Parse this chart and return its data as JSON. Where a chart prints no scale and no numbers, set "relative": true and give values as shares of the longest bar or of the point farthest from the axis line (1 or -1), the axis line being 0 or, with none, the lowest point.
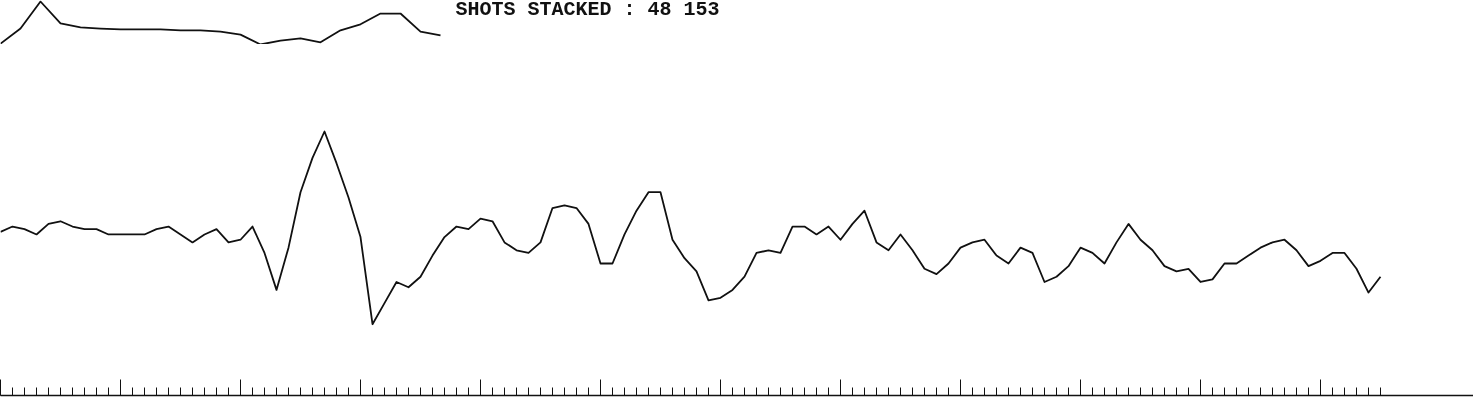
{
  "chart_data": [
    {
      "type": "line",
      "relative": true,
      "title": "SHOTS STACKED : 48 153",
      "grid": false,
      "categories": [
        null,
        null,
        null,
        null,
        null,
        null,
        null,
        null,
        null,
        null,
        null,
        null,
        null,
        null,
        null,
        null,
        null,
        null,
        null,
        null,
        null,
        null,
        null
      ],
      "series": [
        {
          "color": "#111111",
          "values": [
            0.02,
            0.37,
            1,
            0.49,
            0.4,
            0.37,
            0.35,
            0.35,
            0.35,
            0.33,
            0.33,
            0.3,
            0.23,
            0,
            0.09,
            0.14,
            0.05,
            0.33,
            0.47,
            0.72,
            0.72,
            0.3,
            0.21
          ]
        }
      ]
    },
    {
      "type": "line",
      "relative": true,
      "grid": false,
      "categories": [
        null,
        null,
        null,
        null,
        null,
        null,
        null,
        null,
        null,
        null,
        null,
        null,
        null,
        null,
        null,
        null,
        null,
        null,
        null,
        null,
        null,
        null,
        null,
        null,
        null,
        null,
        null,
        null,
        null,
        null,
        null,
        null,
        null,
        null,
        null,
        null,
        null,
        null,
        null,
        null,
        null,
        null,
        null,
        null,
        null,
        null,
        null,
        null,
        null,
        null,
        null,
        null,
        null,
        null,
        null,
        null,
        null,
        null,
        null,
        null,
        null,
        null,
        null,
        null,
        null,
        null,
        null,
        null,
        null,
        null,
        null,
        null,
        null,
        null,
        null,
        null,
        null,
        null,
        null,
        null,
        null,
        null,
        null,
        null,
        null,
        null,
        null,
        null,
        null,
        null,
        null,
        null,
        null,
        null,
        null,
        null,
        null,
        null,
        null,
        null,
        null,
        null,
        null,
        null,
        null,
        null,
        null,
        null,
        null,
        null,
        null,
        null,
        null,
        null,
        null,
        null
      ],
      "series": [
        {
          "color": "#111111",
          "values": [
            0.62,
            0.64,
            0.63,
            0.61,
            0.65,
            0.66,
            0.64,
            0.63,
            0.63,
            0.61,
            0.61,
            0.61,
            0.61,
            0.63,
            0.64,
            0.61,
            0.58,
            0.61,
            0.63,
            0.58,
            0.59,
            0.64,
            0.54,
            0.4,
            0.56,
            0.77,
            0.9,
            1,
            0.88,
            0.75,
            0.6,
            0.27,
            0.35,
            0.43,
            0.41,
            0.45,
            0.53,
            0.6,
            0.64,
            0.63,
            0.67,
            0.66,
            0.58,
            0.55,
            0.54,
            0.58,
            0.71,
            0.72,
            0.71,
            0.65,
            0.5,
            0.5,
            0.61,
            0.7,
            0.77,
            0.77,
            0.59,
            0.52,
            0.47,
            0.36,
            0.37,
            0.4,
            0.45,
            0.54,
            0.55,
            0.54,
            0.64,
            0.64,
            0.61,
            0.64,
            0.59,
            0.65,
            0.7,
            0.58,
            0.55,
            0.61,
            0.55,
            0.48,
            0.46,
            0.5,
            0.56,
            0.58,
            0.59,
            0.53,
            0.5,
            0.56,
            0.54,
            0.43,
            0.45,
            0.49,
            0.56,
            0.54,
            0.5,
            0.58,
            0.65,
            0.59,
            0.55,
            0.49,
            0.47,
            0.48,
            0.43,
            0.44,
            0.5,
            0.5,
            0.53,
            0.56,
            0.58,
            0.59,
            0.55,
            0.49,
            0.51,
            0.54,
            0.54,
            0.48,
            0.39,
            0.45
          ]
        }
      ]
    }
  ]
}
